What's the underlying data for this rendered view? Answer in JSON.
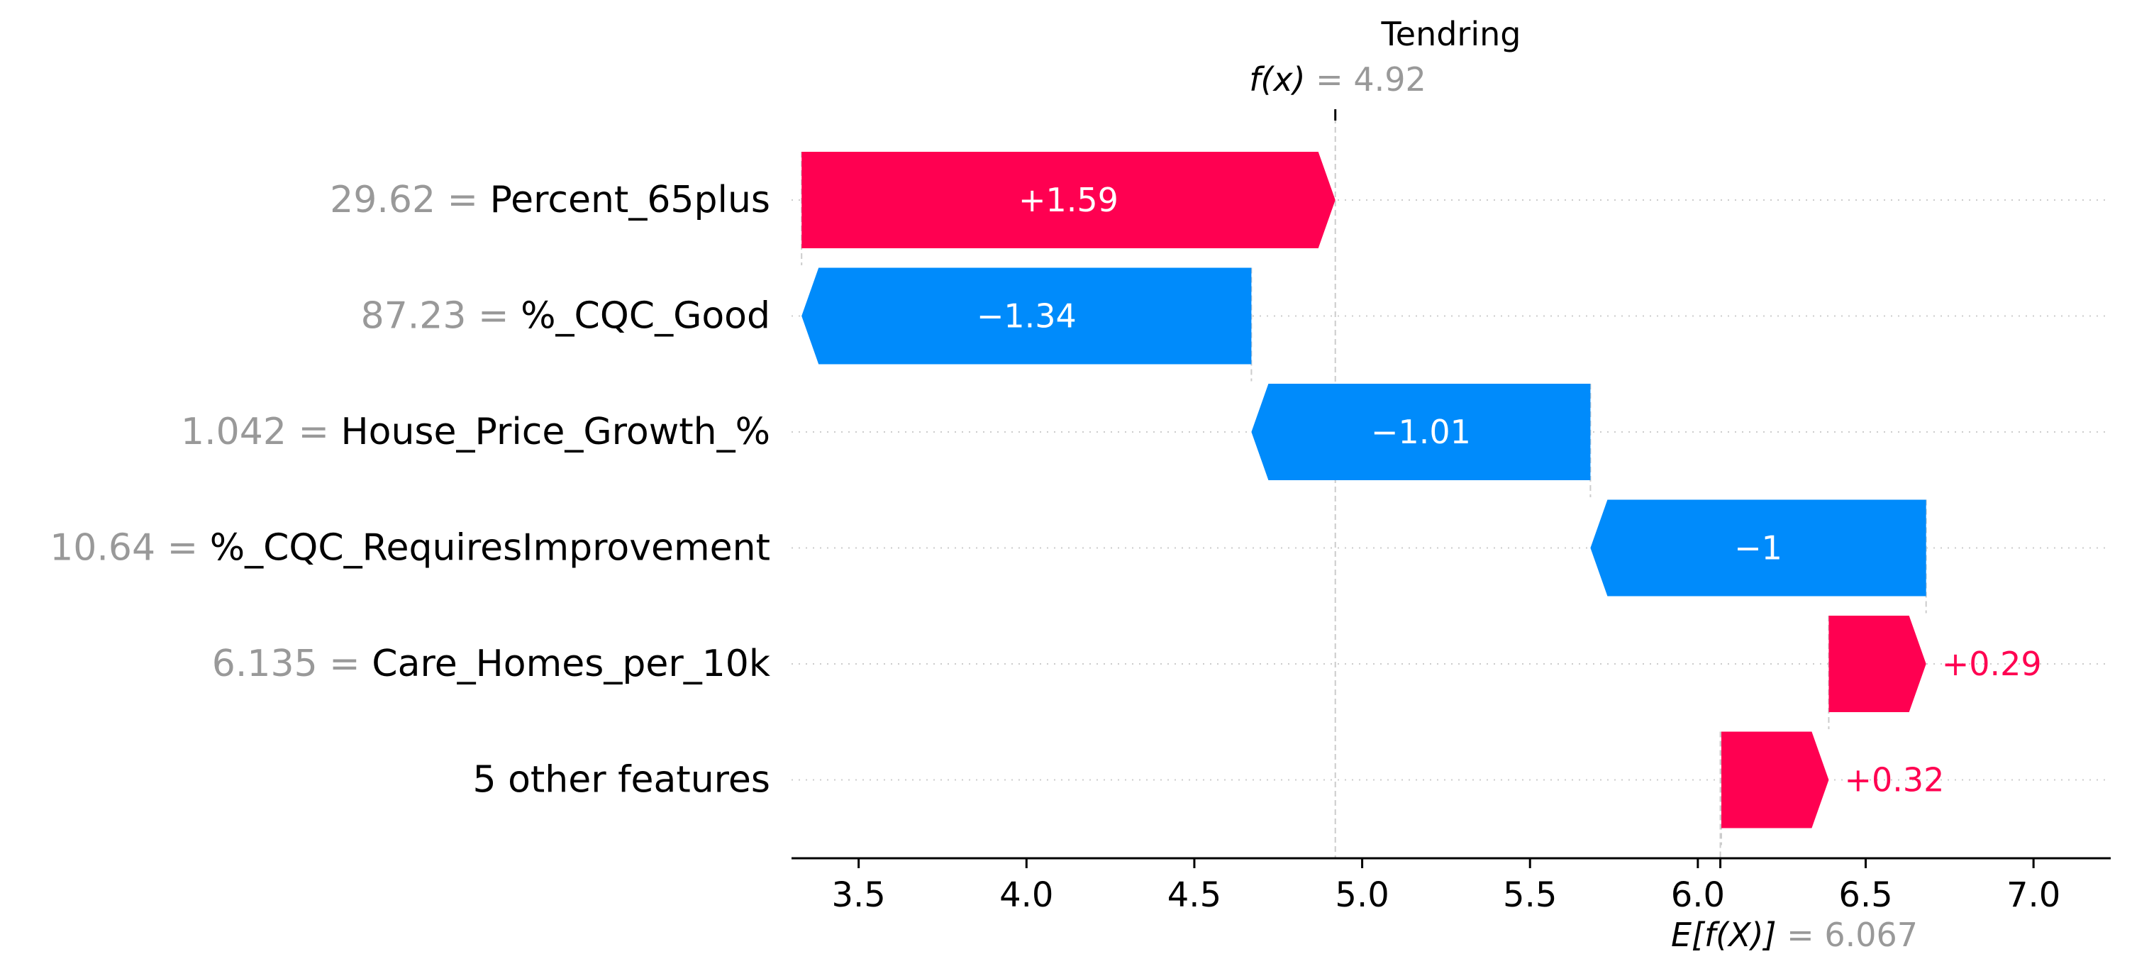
{
  "chart_data": {
    "type": "waterfall",
    "title": "Tendring",
    "fx_label": "f(x)",
    "fx_value": "4.92",
    "ex_label": "E[f(X)]",
    "ex_value": "6.067",
    "base_value": 6.067,
    "output_value": 4.92,
    "xlim": [
      3.3,
      7.23
    ],
    "ticks": [
      3.5,
      4.0,
      4.5,
      5.0,
      5.5,
      6.0,
      6.5,
      7.0
    ],
    "tick_labels": [
      "3.5",
      "4.0",
      "4.5",
      "5.0",
      "5.5",
      "6.0",
      "6.5",
      "7.0"
    ],
    "features": [
      {
        "value": "29.62",
        "name": "Percent_65plus",
        "shap": 1.59,
        "label": "+1.59",
        "label_pos": "inside"
      },
      {
        "value": "87.23",
        "name": "%_CQC_Good",
        "shap": -1.34,
        "label": "−1.34",
        "label_pos": "inside"
      },
      {
        "value": "1.042",
        "name": "House_Price_Growth_%",
        "shap": -1.01,
        "label": "−1.01",
        "label_pos": "inside"
      },
      {
        "value": "10.64",
        "name": "%_CQC_RequiresImprovement",
        "shap": -1.0,
        "label": "−1",
        "label_pos": "inside"
      },
      {
        "value": "6.135",
        "name": "Care_Homes_per_10k",
        "shap": 0.29,
        "label": "+0.29",
        "label_pos": "outside"
      },
      {
        "value": "",
        "name": "5 other features",
        "shap": 0.32,
        "label": "+0.32",
        "label_pos": "outside"
      }
    ],
    "colors": {
      "positive": "#ff0051",
      "negative": "#008bfb",
      "value_text": "#999999",
      "axis": "#000000",
      "grid": "#cccccc"
    }
  }
}
